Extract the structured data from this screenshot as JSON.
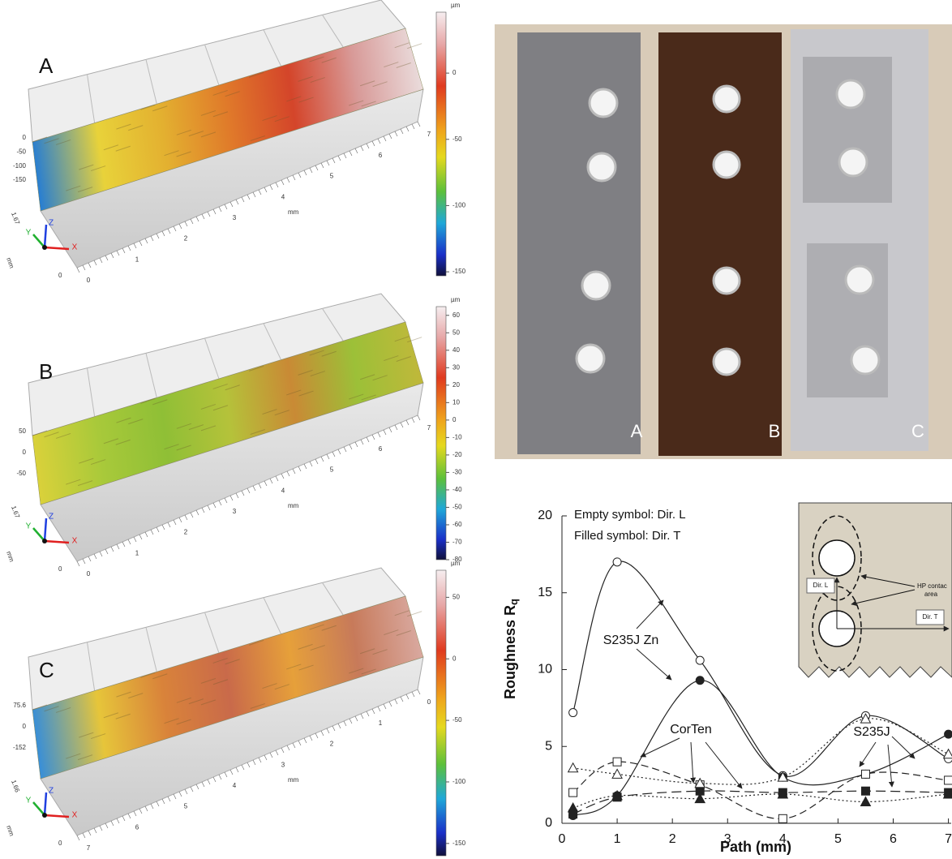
{
  "surface_panels": [
    {
      "label": "A",
      "unit": "µm",
      "cbar_lim": [
        -153,
        46
      ],
      "cbar_ticks": [
        0,
        -50,
        -100,
        -150
      ],
      "z_ticks": [
        0,
        -50,
        -100,
        -150
      ],
      "y_tick": 1.67,
      "x_ticks": [
        0,
        1,
        2,
        3,
        4,
        5,
        6,
        7
      ],
      "x_reversed": false,
      "axis_unit": "mm",
      "triad": [
        "X",
        "Y",
        "Z"
      ],
      "surface_colors": [
        "#2a7fd0",
        "#e8d23a",
        "#e3b030",
        "#e07a2a",
        "#d4452a",
        "#d89a98",
        "#eadcdc"
      ]
    },
    {
      "label": "B",
      "unit": "µm",
      "cbar_lim": [
        -80,
        65
      ],
      "cbar_ticks": [
        60,
        50,
        40,
        30,
        20,
        10,
        0,
        -10,
        -20,
        -30,
        -40,
        -50,
        -60,
        -70,
        -80
      ],
      "z_ticks": [
        50,
        0,
        -50
      ],
      "y_tick": 1.67,
      "x_ticks": [
        0,
        1,
        2,
        3,
        4,
        5,
        6,
        7
      ],
      "x_reversed": false,
      "axis_unit": "mm",
      "triad": [
        "X",
        "Y",
        "Z"
      ],
      "surface_colors": [
        "#d9d13a",
        "#a8c93a",
        "#8fbf36",
        "#b5c23a",
        "#c98a35",
        "#9cc038",
        "#c0b83a"
      ]
    },
    {
      "label": "C",
      "unit": "µm",
      "cbar_lim": [
        -160,
        72
      ],
      "cbar_ticks": [
        50,
        0,
        -50,
        -100,
        -150
      ],
      "z_ticks": [
        75.6,
        0,
        -152
      ],
      "y_tick": 1.66,
      "x_ticks": [
        0,
        1,
        2,
        3,
        4,
        5,
        6,
        7
      ],
      "x_reversed": true,
      "axis_unit": "mm",
      "triad": [
        "X",
        "Y",
        "Z"
      ],
      "surface_colors": [
        "#3a8fd6",
        "#e6c53a",
        "#d9833a",
        "#c96a4a",
        "#e6a03a",
        "#c77a5a",
        "#d9a9a0"
      ]
    }
  ],
  "photo": {
    "labels": [
      "A",
      "B",
      "C"
    ]
  },
  "chart_data": {
    "type": "line",
    "x": [
      0.2,
      1,
      2.5,
      4,
      5.5,
      7
    ],
    "xlim": [
      0,
      7.05
    ],
    "xticks": [
      0,
      1,
      2,
      3,
      4,
      5,
      6,
      7
    ],
    "ylim": [
      0,
      20
    ],
    "yticks": [
      0,
      5,
      10,
      15,
      20
    ],
    "xlabel": "Path (mm)",
    "ylabel": "Roughness R",
    "ylabel_subscript": "q",
    "notes": [
      "Empty symbol: Dir. L",
      "Filled symbol: Dir. T"
    ],
    "annotations": [
      "S235J Zn",
      "CorTen",
      "S235J"
    ],
    "inset": {
      "labels": [
        "Dir. L",
        "Dir. T",
        "HP contac",
        "area"
      ]
    },
    "series": [
      {
        "marker": "circle",
        "filled": false,
        "dash": "",
        "color": "#222",
        "values": [
          7.2,
          17,
          10.6,
          3.1,
          7,
          4.2
        ]
      },
      {
        "marker": "circle",
        "filled": true,
        "dash": "",
        "color": "#222",
        "values": [
          0.5,
          1.8,
          9.3,
          3,
          3.2,
          5.8
        ]
      },
      {
        "marker": "square",
        "filled": false,
        "dash": "9 5",
        "color": "#222",
        "values": [
          2,
          4,
          2.5,
          0.3,
          3.2,
          2.8
        ]
      },
      {
        "marker": "square",
        "filled": true,
        "dash": "12 6",
        "color": "#222",
        "values": [
          0.6,
          1.7,
          2.1,
          2,
          2.1,
          2
        ]
      },
      {
        "marker": "triangle",
        "filled": false,
        "dash": "2 3",
        "color": "#222",
        "values": [
          3.6,
          3.2,
          2.6,
          3,
          6.8,
          4.5
        ]
      },
      {
        "marker": "triangle",
        "filled": true,
        "dash": "2 3",
        "color": "#222",
        "values": [
          1,
          1.8,
          1.6,
          1.9,
          1.4,
          1.9
        ]
      }
    ]
  }
}
